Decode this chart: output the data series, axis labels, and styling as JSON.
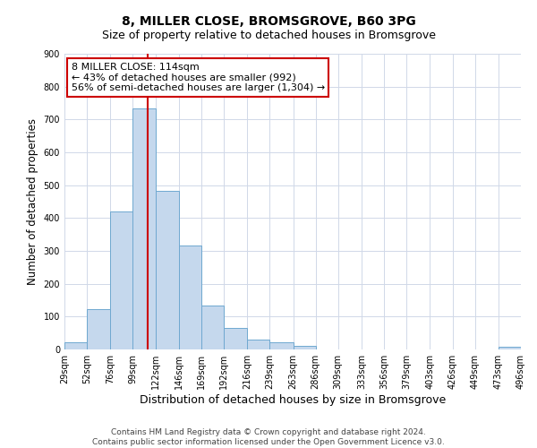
{
  "title": "8, MILLER CLOSE, BROMSGROVE, B60 3PG",
  "subtitle": "Size of property relative to detached houses in Bromsgrove",
  "xlabel": "Distribution of detached houses by size in Bromsgrove",
  "ylabel": "Number of detached properties",
  "bar_color": "#c5d8ed",
  "bar_edge_color": "#6fa8d0",
  "grid_color": "#d0d8e8",
  "vline_x": 114,
  "vline_color": "#cc0000",
  "bins": [
    29,
    52,
    76,
    99,
    122,
    146,
    169,
    192,
    216,
    239,
    263,
    286,
    309,
    333,
    356,
    379,
    403,
    426,
    449,
    473,
    496
  ],
  "bin_labels": [
    "29sqm",
    "52sqm",
    "76sqm",
    "99sqm",
    "122sqm",
    "146sqm",
    "169sqm",
    "192sqm",
    "216sqm",
    "239sqm",
    "263sqm",
    "286sqm",
    "309sqm",
    "333sqm",
    "356sqm",
    "379sqm",
    "403sqm",
    "426sqm",
    "449sqm",
    "473sqm",
    "496sqm"
  ],
  "counts": [
    22,
    122,
    420,
    735,
    483,
    316,
    135,
    65,
    30,
    22,
    10,
    0,
    0,
    0,
    0,
    0,
    0,
    0,
    0,
    8
  ],
  "ylim": [
    0,
    900
  ],
  "yticks": [
    0,
    100,
    200,
    300,
    400,
    500,
    600,
    700,
    800,
    900
  ],
  "annotation_text": "8 MILLER CLOSE: 114sqm\n← 43% of detached houses are smaller (992)\n56% of semi-detached houses are larger (1,304) →",
  "annotation_box_color": "#ffffff",
  "annotation_box_edge_color": "#cc0000",
  "footer_line1": "Contains HM Land Registry data © Crown copyright and database right 2024.",
  "footer_line2": "Contains public sector information licensed under the Open Government Licence v3.0.",
  "background_color": "#ffffff",
  "title_fontsize": 10,
  "subtitle_fontsize": 9,
  "ylabel_fontsize": 8.5,
  "xlabel_fontsize": 9,
  "tick_fontsize": 7,
  "annotation_fontsize": 8,
  "footer_fontsize": 6.5
}
